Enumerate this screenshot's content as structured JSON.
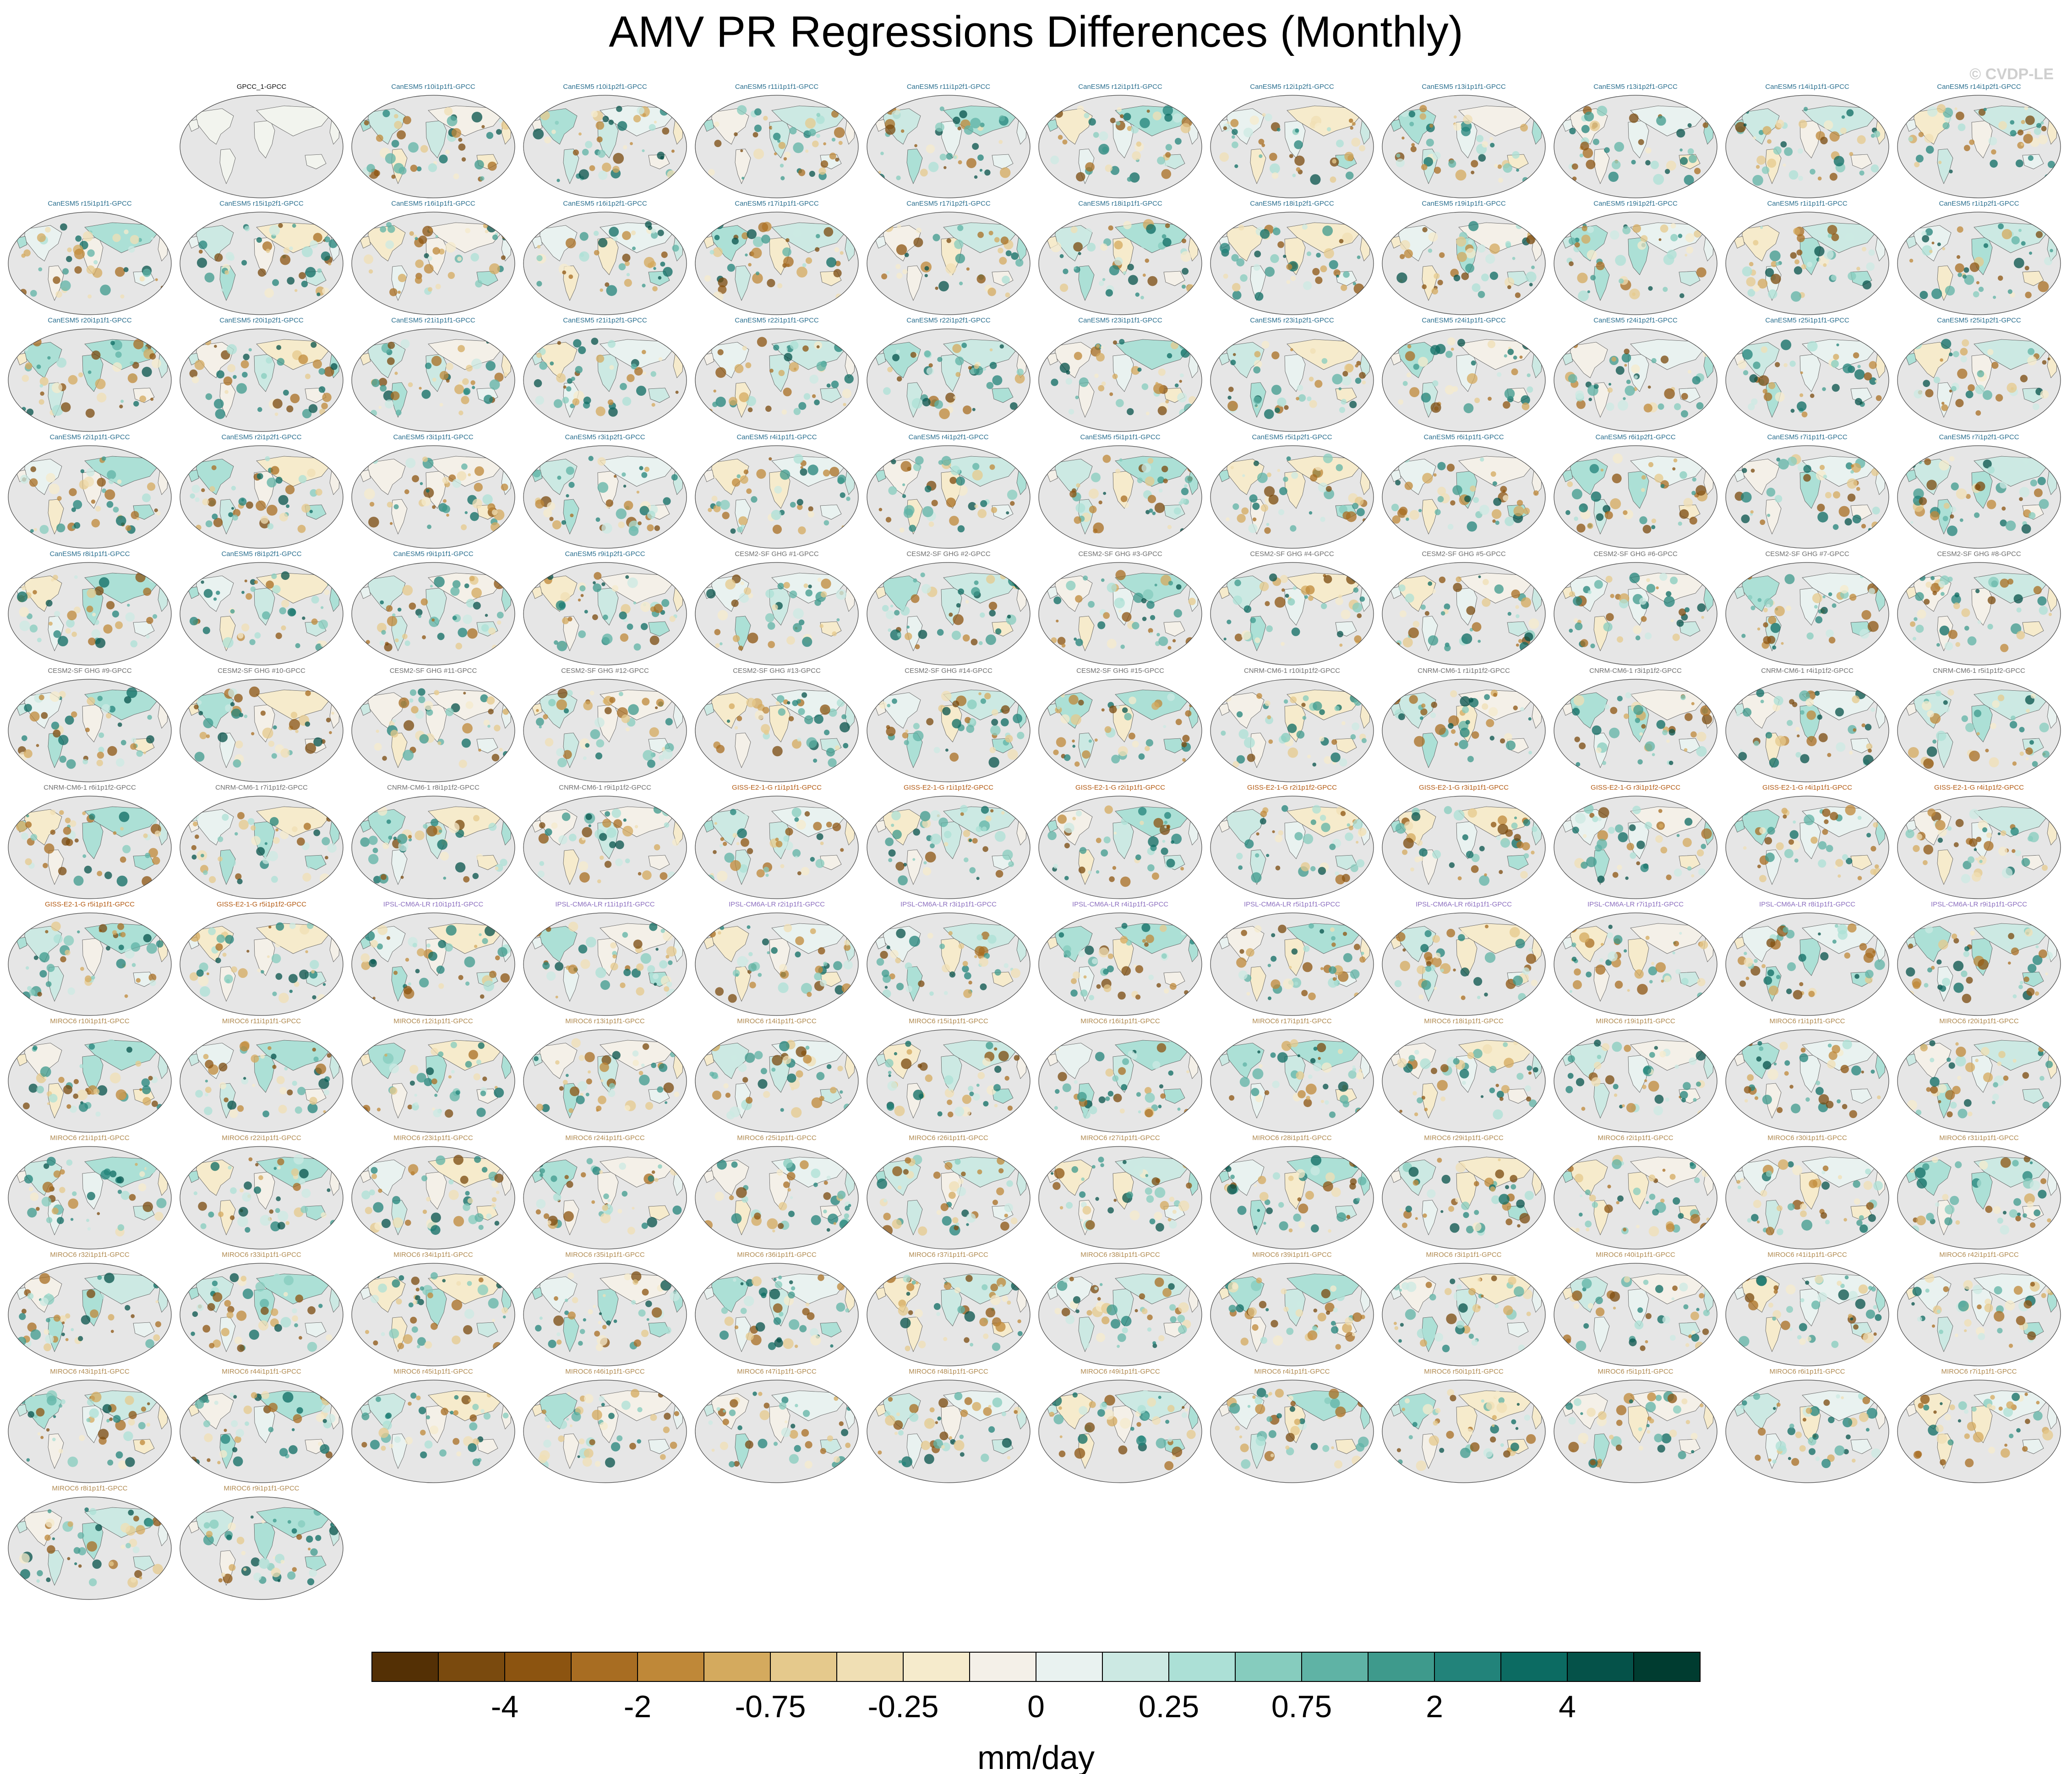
{
  "title": "AMV PR Regressions Differences (Monthly)",
  "credit": "© CVDP-LE",
  "chart_data": {
    "type": "heatmap",
    "title": "AMV PR Regressions Differences (Monthly)",
    "units": "mm/day",
    "colorbar": {
      "labels": [
        "-4",
        "-2",
        "-0.75",
        "-0.25",
        "0",
        "0.25",
        "0.75",
        "2",
        "4"
      ],
      "colors": [
        "#543005",
        "#7a4a0e",
        "#8c5410",
        "#a86d22",
        "#bf8838",
        "#d4aa5e",
        "#e5c98c",
        "#f0dfb4",
        "#f6ebcc",
        "#f4f0e8",
        "#e9f2f0",
        "#cce9e3",
        "#ace0d6",
        "#86ccbe",
        "#5fb3a5",
        "#3e9a8c",
        "#22837a",
        "#0c6b62",
        "#055249",
        "#003c30"
      ]
    },
    "panels": [
      {
        "label": "GPCC_1-GPCC",
        "group": "blk"
      },
      {
        "label": "CanESM5 r10i1p1f1-GPCC",
        "group": "can"
      },
      {
        "label": "CanESM5 r10i1p2f1-GPCC",
        "group": "can"
      },
      {
        "label": "CanESM5 r11i1p1f1-GPCC",
        "group": "can"
      },
      {
        "label": "CanESM5 r11i1p2f1-GPCC",
        "group": "can"
      },
      {
        "label": "CanESM5 r12i1p1f1-GPCC",
        "group": "can"
      },
      {
        "label": "CanESM5 r12i1p2f1-GPCC",
        "group": "can"
      },
      {
        "label": "CanESM5 r13i1p1f1-GPCC",
        "group": "can"
      },
      {
        "label": "CanESM5 r13i1p2f1-GPCC",
        "group": "can"
      },
      {
        "label": "CanESM5 r14i1p1f1-GPCC",
        "group": "can"
      },
      {
        "label": "CanESM5 r14i1p2f1-GPCC",
        "group": "can"
      },
      {
        "label": "CanESM5 r15i1p1f1-GPCC",
        "group": "can"
      },
      {
        "label": "CanESM5 r15i1p2f1-GPCC",
        "group": "can"
      },
      {
        "label": "CanESM5 r16i1p1f1-GPCC",
        "group": "can"
      },
      {
        "label": "CanESM5 r16i1p2f1-GPCC",
        "group": "can"
      },
      {
        "label": "CanESM5 r17i1p1f1-GPCC",
        "group": "can"
      },
      {
        "label": "CanESM5 r17i1p2f1-GPCC",
        "group": "can"
      },
      {
        "label": "CanESM5 r18i1p1f1-GPCC",
        "group": "can"
      },
      {
        "label": "CanESM5 r18i1p2f1-GPCC",
        "group": "can"
      },
      {
        "label": "CanESM5 r19i1p1f1-GPCC",
        "group": "can"
      },
      {
        "label": "CanESM5 r19i1p2f1-GPCC",
        "group": "can"
      },
      {
        "label": "CanESM5 r1i1p1f1-GPCC",
        "group": "can"
      },
      {
        "label": "CanESM5 r1i1p2f1-GPCC",
        "group": "can"
      },
      {
        "label": "CanESM5 r20i1p1f1-GPCC",
        "group": "can"
      },
      {
        "label": "CanESM5 r20i1p2f1-GPCC",
        "group": "can"
      },
      {
        "label": "CanESM5 r21i1p1f1-GPCC",
        "group": "can"
      },
      {
        "label": "CanESM5 r21i1p2f1-GPCC",
        "group": "can"
      },
      {
        "label": "CanESM5 r22i1p1f1-GPCC",
        "group": "can"
      },
      {
        "label": "CanESM5 r22i1p2f1-GPCC",
        "group": "can"
      },
      {
        "label": "CanESM5 r23i1p1f1-GPCC",
        "group": "can"
      },
      {
        "label": "CanESM5 r23i1p2f1-GPCC",
        "group": "can"
      },
      {
        "label": "CanESM5 r24i1p1f1-GPCC",
        "group": "can"
      },
      {
        "label": "CanESM5 r24i1p2f1-GPCC",
        "group": "can"
      },
      {
        "label": "CanESM5 r25i1p1f1-GPCC",
        "group": "can"
      },
      {
        "label": "CanESM5 r25i1p2f1-GPCC",
        "group": "can"
      },
      {
        "label": "CanESM5 r2i1p1f1-GPCC",
        "group": "can"
      },
      {
        "label": "CanESM5 r2i1p2f1-GPCC",
        "group": "can"
      },
      {
        "label": "CanESM5 r3i1p1f1-GPCC",
        "group": "can"
      },
      {
        "label": "CanESM5 r3i1p2f1-GPCC",
        "group": "can"
      },
      {
        "label": "CanESM5 r4i1p1f1-GPCC",
        "group": "can"
      },
      {
        "label": "CanESM5 r4i1p2f1-GPCC",
        "group": "can"
      },
      {
        "label": "CanESM5 r5i1p1f1-GPCC",
        "group": "can"
      },
      {
        "label": "CanESM5 r5i1p2f1-GPCC",
        "group": "can"
      },
      {
        "label": "CanESM5 r6i1p1f1-GPCC",
        "group": "can"
      },
      {
        "label": "CanESM5 r6i1p2f1-GPCC",
        "group": "can"
      },
      {
        "label": "CanESM5 r7i1p1f1-GPCC",
        "group": "can"
      },
      {
        "label": "CanESM5 r7i1p2f1-GPCC",
        "group": "can"
      },
      {
        "label": "CanESM5 r8i1p1f1-GPCC",
        "group": "can"
      },
      {
        "label": "CanESM5 r8i1p2f1-GPCC",
        "group": "can"
      },
      {
        "label": "CanESM5 r9i1p1f1-GPCC",
        "group": "can"
      },
      {
        "label": "CanESM5 r9i1p2f1-GPCC",
        "group": "can"
      },
      {
        "label": "CESM2-SF GHG #1-GPCC",
        "group": "ces"
      },
      {
        "label": "CESM2-SF GHG #2-GPCC",
        "group": "ces"
      },
      {
        "label": "CESM2-SF GHG #3-GPCC",
        "group": "ces"
      },
      {
        "label": "CESM2-SF GHG #4-GPCC",
        "group": "ces"
      },
      {
        "label": "CESM2-SF GHG #5-GPCC",
        "group": "ces"
      },
      {
        "label": "CESM2-SF GHG #6-GPCC",
        "group": "ces"
      },
      {
        "label": "CESM2-SF GHG #7-GPCC",
        "group": "ces"
      },
      {
        "label": "CESM2-SF GHG #8-GPCC",
        "group": "ces"
      },
      {
        "label": "CESM2-SF GHG #9-GPCC",
        "group": "ces"
      },
      {
        "label": "CESM2-SF GHG #10-GPCC",
        "group": "ces"
      },
      {
        "label": "CESM2-SF GHG #11-GPCC",
        "group": "ces"
      },
      {
        "label": "CESM2-SF GHG #12-GPCC",
        "group": "ces"
      },
      {
        "label": "CESM2-SF GHG #13-GPCC",
        "group": "ces"
      },
      {
        "label": "CESM2-SF GHG #14-GPCC",
        "group": "ces"
      },
      {
        "label": "CESM2-SF GHG #15-GPCC",
        "group": "ces"
      },
      {
        "label": "CNRM-CM6-1 r10i1p1f2-GPCC",
        "group": "cnr"
      },
      {
        "label": "CNRM-CM6-1 r1i1p1f2-GPCC",
        "group": "cnr"
      },
      {
        "label": "CNRM-CM6-1 r3i1p1f2-GPCC",
        "group": "cnr"
      },
      {
        "label": "CNRM-CM6-1 r4i1p1f2-GPCC",
        "group": "cnr"
      },
      {
        "label": "CNRM-CM6-1 r5i1p1f2-GPCC",
        "group": "cnr"
      },
      {
        "label": "CNRM-CM6-1 r6i1p1f2-GPCC",
        "group": "cnr"
      },
      {
        "label": "CNRM-CM6-1 r7i1p1f2-GPCC",
        "group": "cnr"
      },
      {
        "label": "CNRM-CM6-1 r8i1p1f2-GPCC",
        "group": "cnr"
      },
      {
        "label": "CNRM-CM6-1 r9i1p1f2-GPCC",
        "group": "cnr"
      },
      {
        "label": "GISS-E2-1-G r1i1p1f1-GPCC",
        "group": "gis"
      },
      {
        "label": "GISS-E2-1-G r1i1p1f2-GPCC",
        "group": "gis"
      },
      {
        "label": "GISS-E2-1-G r2i1p1f1-GPCC",
        "group": "gis"
      },
      {
        "label": "GISS-E2-1-G r2i1p1f2-GPCC",
        "group": "gis"
      },
      {
        "label": "GISS-E2-1-G r3i1p1f1-GPCC",
        "group": "gis"
      },
      {
        "label": "GISS-E2-1-G r3i1p1f2-GPCC",
        "group": "gis"
      },
      {
        "label": "GISS-E2-1-G r4i1p1f1-GPCC",
        "group": "gis"
      },
      {
        "label": "GISS-E2-1-G r4i1p1f2-GPCC",
        "group": "gis"
      },
      {
        "label": "GISS-E2-1-G r5i1p1f1-GPCC",
        "group": "gis"
      },
      {
        "label": "GISS-E2-1-G r5i1p1f2-GPCC",
        "group": "gis"
      },
      {
        "label": "IPSL-CM6A-LR r10i1p1f1-GPCC",
        "group": "ips"
      },
      {
        "label": "IPSL-CM6A-LR r11i1p1f1-GPCC",
        "group": "ips"
      },
      {
        "label": "IPSL-CM6A-LR r2i1p1f1-GPCC",
        "group": "ips"
      },
      {
        "label": "IPSL-CM6A-LR r3i1p1f1-GPCC",
        "group": "ips"
      },
      {
        "label": "IPSL-CM6A-LR r4i1p1f1-GPCC",
        "group": "ips"
      },
      {
        "label": "IPSL-CM6A-LR r5i1p1f1-GPCC",
        "group": "ips"
      },
      {
        "label": "IPSL-CM6A-LR r6i1p1f1-GPCC",
        "group": "ips"
      },
      {
        "label": "IPSL-CM6A-LR r7i1p1f1-GPCC",
        "group": "ips"
      },
      {
        "label": "IPSL-CM6A-LR r8i1p1f1-GPCC",
        "group": "ips"
      },
      {
        "label": "IPSL-CM6A-LR r9i1p1f1-GPCC",
        "group": "ips"
      },
      {
        "label": "MIROC6 r10i1p1f1-GPCC",
        "group": "mir"
      },
      {
        "label": "MIROC6 r11i1p1f1-GPCC",
        "group": "mir"
      },
      {
        "label": "MIROC6 r12i1p1f1-GPCC",
        "group": "mir"
      },
      {
        "label": "MIROC6 r13i1p1f1-GPCC",
        "group": "mir"
      },
      {
        "label": "MIROC6 r14i1p1f1-GPCC",
        "group": "mir"
      },
      {
        "label": "MIROC6 r15i1p1f1-GPCC",
        "group": "mir"
      },
      {
        "label": "MIROC6 r16i1p1f1-GPCC",
        "group": "mir"
      },
      {
        "label": "MIROC6 r17i1p1f1-GPCC",
        "group": "mir"
      },
      {
        "label": "MIROC6 r18i1p1f1-GPCC",
        "group": "mir"
      },
      {
        "label": "MIROC6 r19i1p1f1-GPCC",
        "group": "mir"
      },
      {
        "label": "MIROC6 r1i1p1f1-GPCC",
        "group": "mir"
      },
      {
        "label": "MIROC6 r20i1p1f1-GPCC",
        "group": "mir"
      },
      {
        "label": "MIROC6 r21i1p1f1-GPCC",
        "group": "mir"
      },
      {
        "label": "MIROC6 r22i1p1f1-GPCC",
        "group": "mir"
      },
      {
        "label": "MIROC6 r23i1p1f1-GPCC",
        "group": "mir"
      },
      {
        "label": "MIROC6 r24i1p1f1-GPCC",
        "group": "mir"
      },
      {
        "label": "MIROC6 r25i1p1f1-GPCC",
        "group": "mir"
      },
      {
        "label": "MIROC6 r26i1p1f1-GPCC",
        "group": "mir"
      },
      {
        "label": "MIROC6 r27i1p1f1-GPCC",
        "group": "mir"
      },
      {
        "label": "MIROC6 r28i1p1f1-GPCC",
        "group": "mir"
      },
      {
        "label": "MIROC6 r29i1p1f1-GPCC",
        "group": "mir"
      },
      {
        "label": "MIROC6 r2i1p1f1-GPCC",
        "group": "mir"
      },
      {
        "label": "MIROC6 r30i1p1f1-GPCC",
        "group": "mir"
      },
      {
        "label": "MIROC6 r31i1p1f1-GPCC",
        "group": "mir"
      },
      {
        "label": "MIROC6 r32i1p1f1-GPCC",
        "group": "mir"
      },
      {
        "label": "MIROC6 r33i1p1f1-GPCC",
        "group": "mir"
      },
      {
        "label": "MIROC6 r34i1p1f1-GPCC",
        "group": "mir"
      },
      {
        "label": "MIROC6 r35i1p1f1-GPCC",
        "group": "mir"
      },
      {
        "label": "MIROC6 r36i1p1f1-GPCC",
        "group": "mir"
      },
      {
        "label": "MIROC6 r37i1p1f1-GPCC",
        "group": "mir"
      },
      {
        "label": "MIROC6 r38i1p1f1-GPCC",
        "group": "mir"
      },
      {
        "label": "MIROC6 r39i1p1f1-GPCC",
        "group": "mir"
      },
      {
        "label": "MIROC6 r3i1p1f1-GPCC",
        "group": "mir"
      },
      {
        "label": "MIROC6 r40i1p1f1-GPCC",
        "group": "mir"
      },
      {
        "label": "MIROC6 r41i1p1f1-GPCC",
        "group": "mir"
      },
      {
        "label": "MIROC6 r42i1p1f1-GPCC",
        "group": "mir"
      },
      {
        "label": "MIROC6 r43i1p1f1-GPCC",
        "group": "mir"
      },
      {
        "label": "MIROC6 r44i1p1f1-GPCC",
        "group": "mir"
      },
      {
        "label": "MIROC6 r45i1p1f1-GPCC",
        "group": "mir"
      },
      {
        "label": "MIROC6 r46i1p1f1-GPCC",
        "group": "mir"
      },
      {
        "label": "MIROC6 r47i1p1f1-GPCC",
        "group": "mir"
      },
      {
        "label": "MIROC6 r48i1p1f1-GPCC",
        "group": "mir"
      },
      {
        "label": "MIROC6 r49i1p1f1-GPCC",
        "group": "mir"
      },
      {
        "label": "MIROC6 r4i1p1f1-GPCC",
        "group": "mir"
      },
      {
        "label": "MIROC6 r50i1p1f1-GPCC",
        "group": "mir"
      },
      {
        "label": "MIROC6 r5i1p1f1-GPCC",
        "group": "mir"
      },
      {
        "label": "MIROC6 r6i1p1f1-GPCC",
        "group": "mir"
      },
      {
        "label": "MIROC6 r7i1p1f1-GPCC",
        "group": "mir"
      },
      {
        "label": "MIROC6 r8i1p1f1-GPCC",
        "group": "mir"
      },
      {
        "label": "MIROC6 r9i1p1f1-GPCC",
        "group": "mir"
      }
    ]
  }
}
